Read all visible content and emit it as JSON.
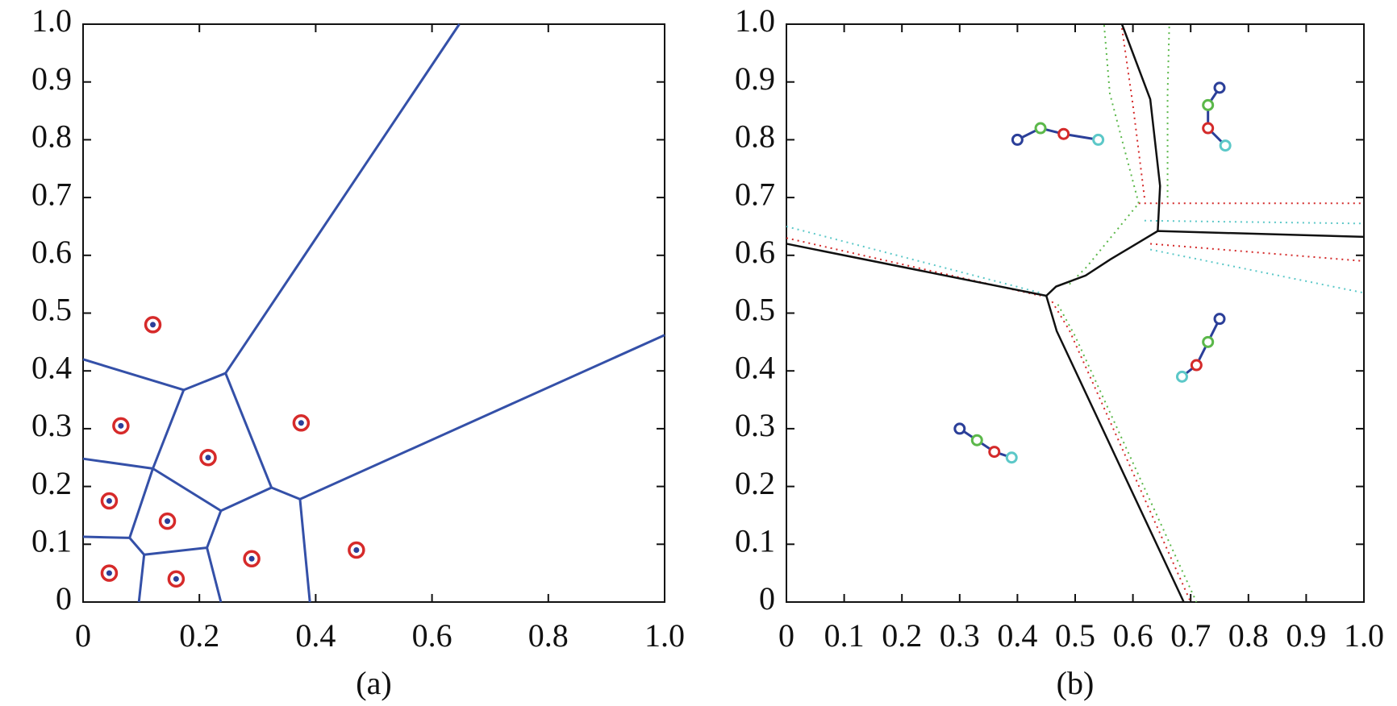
{
  "chart_data": [
    {
      "type": "voronoi",
      "label": "(a)",
      "xlim": [
        0,
        1
      ],
      "ylim": [
        0,
        1
      ],
      "xticks": [
        0,
        0.2,
        0.4,
        0.6,
        0.8,
        {
          "value": 1,
          "label": "1.0"
        }
      ],
      "yticks": [
        0,
        0.1,
        0.2,
        0.3,
        0.4,
        0.5,
        0.6,
        0.7,
        0.8,
        0.9,
        {
          "value": 1,
          "label": "1.0"
        }
      ],
      "edge_color": "#3450a8",
      "point_ring_color": "#d62a2a",
      "point_color": "#2b3f99",
      "points": {
        "x": [
          0.12,
          0.065,
          0.215,
          0.375,
          0.045,
          0.145,
          0.045,
          0.16,
          0.29,
          0.47
        ],
        "y": [
          0.48,
          0.305,
          0.25,
          0.31,
          0.175,
          0.14,
          0.05,
          0.04,
          0.075,
          0.09
        ]
      },
      "edges": [
        {
          "x": [
            0,
            0.173
          ],
          "y": [
            0.42,
            0.367
          ]
        },
        {
          "x": [
            0.173,
            0.245
          ],
          "y": [
            0.367,
            0.396
          ]
        },
        {
          "x": [
            0.245,
            0.647
          ],
          "y": [
            0.396,
            1
          ]
        },
        {
          "x": [
            0.245,
            0.324
          ],
          "y": [
            0.396,
            0.198
          ]
        },
        {
          "x": [
            0.324,
            0.373
          ],
          "y": [
            0.198,
            0.178
          ]
        },
        {
          "x": [
            0.373,
            1
          ],
          "y": [
            0.178,
            0.462
          ]
        },
        {
          "x": [
            0.373,
            0.39
          ],
          "y": [
            0.178,
            0
          ]
        },
        {
          "x": [
            0.324,
            0.237
          ],
          "y": [
            0.198,
            0.158
          ]
        },
        {
          "x": [
            0.237,
            0.213
          ],
          "y": [
            0.158,
            0.094
          ]
        },
        {
          "x": [
            0.213,
            0.237
          ],
          "y": [
            0.094,
            0
          ]
        },
        {
          "x": [
            0.237,
            0.12
          ],
          "y": [
            0.158,
            0.231
          ]
        },
        {
          "x": [
            0.12,
            0.173
          ],
          "y": [
            0.231,
            0.367
          ]
        },
        {
          "x": [
            0,
            0.12
          ],
          "y": [
            0.248,
            0.231
          ]
        },
        {
          "x": [
            0.12,
            0.08
          ],
          "y": [
            0.231,
            0.111
          ]
        },
        {
          "x": [
            0,
            0.08
          ],
          "y": [
            0.113,
            0.111
          ]
        },
        {
          "x": [
            0.08,
            0.105
          ],
          "y": [
            0.111,
            0.082
          ]
        },
        {
          "x": [
            0.105,
            0.213
          ],
          "y": [
            0.082,
            0.094
          ]
        },
        {
          "x": [
            0.105,
            0.096
          ],
          "y": [
            0.082,
            0
          ]
        }
      ]
    },
    {
      "type": "trajectory",
      "label": "(b)",
      "xlim": [
        0,
        1
      ],
      "ylim": [
        0,
        1
      ],
      "xticks": [
        0,
        0.1,
        0.2,
        0.3,
        0.4,
        0.5,
        0.6,
        0.7,
        0.8,
        0.9,
        {
          "value": 1,
          "label": "1.0"
        }
      ],
      "yticks": [
        0,
        0.1,
        0.2,
        0.3,
        0.4,
        0.5,
        0.6,
        0.7,
        0.8,
        0.9,
        {
          "value": 1,
          "label": "1.0"
        }
      ],
      "line_color": "#2b3f99",
      "marker_colors": [
        "#2b3f99",
        "#5bb84a",
        "#d42a2a",
        "#5cc8c8"
      ],
      "boundary_color": "#111111",
      "trajectories": [
        {
          "x": [
            0.4,
            0.44,
            0.48,
            0.54
          ],
          "y": [
            0.8,
            0.82,
            0.81,
            0.8
          ]
        },
        {
          "x": [
            0.75,
            0.73,
            0.73,
            0.76
          ],
          "y": [
            0.89,
            0.86,
            0.82,
            0.79
          ]
        },
        {
          "x": [
            0.75,
            0.73,
            0.71,
            0.685
          ],
          "y": [
            0.49,
            0.45,
            0.41,
            0.39
          ]
        },
        {
          "x": [
            0.3,
            0.33,
            0.36,
            0.39
          ],
          "y": [
            0.3,
            0.28,
            0.26,
            0.25
          ]
        }
      ],
      "boundaries": [
        {
          "x": [
            0,
            0.45,
            0.467,
            0.518,
            0.561,
            0.643,
            1
          ],
          "y": [
            0.62,
            0.53,
            0.546,
            0.565,
            0.593,
            0.642,
            0.632
          ]
        },
        {
          "x": [
            0.643,
            0.647,
            0.63,
            0.581
          ],
          "y": [
            0.642,
            0.72,
            0.87,
            1
          ]
        },
        {
          "x": [
            0.45,
            0.468,
            0.688
          ],
          "y": [
            0.53,
            0.469,
            0
          ]
        }
      ],
      "dotted": [
        {
          "color": "#5cc8c8",
          "x": [
            0,
            0.44
          ],
          "y": [
            0.65,
            0.535
          ]
        },
        {
          "color": "#d42a2a",
          "x": [
            0,
            0.44
          ],
          "y": [
            0.63,
            0.53
          ]
        },
        {
          "color": "#d42a2a",
          "x": [
            0.61,
            1
          ],
          "y": [
            0.69,
            0.69
          ]
        },
        {
          "color": "#5cc8c8",
          "x": [
            0.62,
            1
          ],
          "y": [
            0.66,
            0.655
          ]
        },
        {
          "color": "#d42a2a",
          "x": [
            0.63,
            1
          ],
          "y": [
            0.62,
            0.59
          ]
        },
        {
          "color": "#5cc8c8",
          "x": [
            0.63,
            1
          ],
          "y": [
            0.61,
            0.535
          ]
        },
        {
          "color": "#5bb84a",
          "x": [
            0.61,
            0.56,
            0.55
          ],
          "y": [
            0.69,
            0.88,
            1
          ]
        },
        {
          "color": "#d42a2a",
          "x": [
            0.62,
            0.6,
            0.58
          ],
          "y": [
            0.7,
            0.86,
            1
          ]
        },
        {
          "color": "#5bb84a",
          "x": [
            0.66,
            0.66,
            0.663
          ],
          "y": [
            0.7,
            0.88,
            1
          ]
        },
        {
          "color": "#5bb84a",
          "x": [
            0.49,
            0.52,
            0.61
          ],
          "y": [
            0.55,
            0.58,
            0.69
          ]
        },
        {
          "color": "#d42a2a",
          "x": [
            0.46,
            0.49,
            0.7
          ],
          "y": [
            0.52,
            0.47,
            0
          ]
        },
        {
          "color": "#5bb84a",
          "x": [
            0.47,
            0.5,
            0.71
          ],
          "y": [
            0.515,
            0.46,
            0
          ]
        }
      ]
    }
  ]
}
